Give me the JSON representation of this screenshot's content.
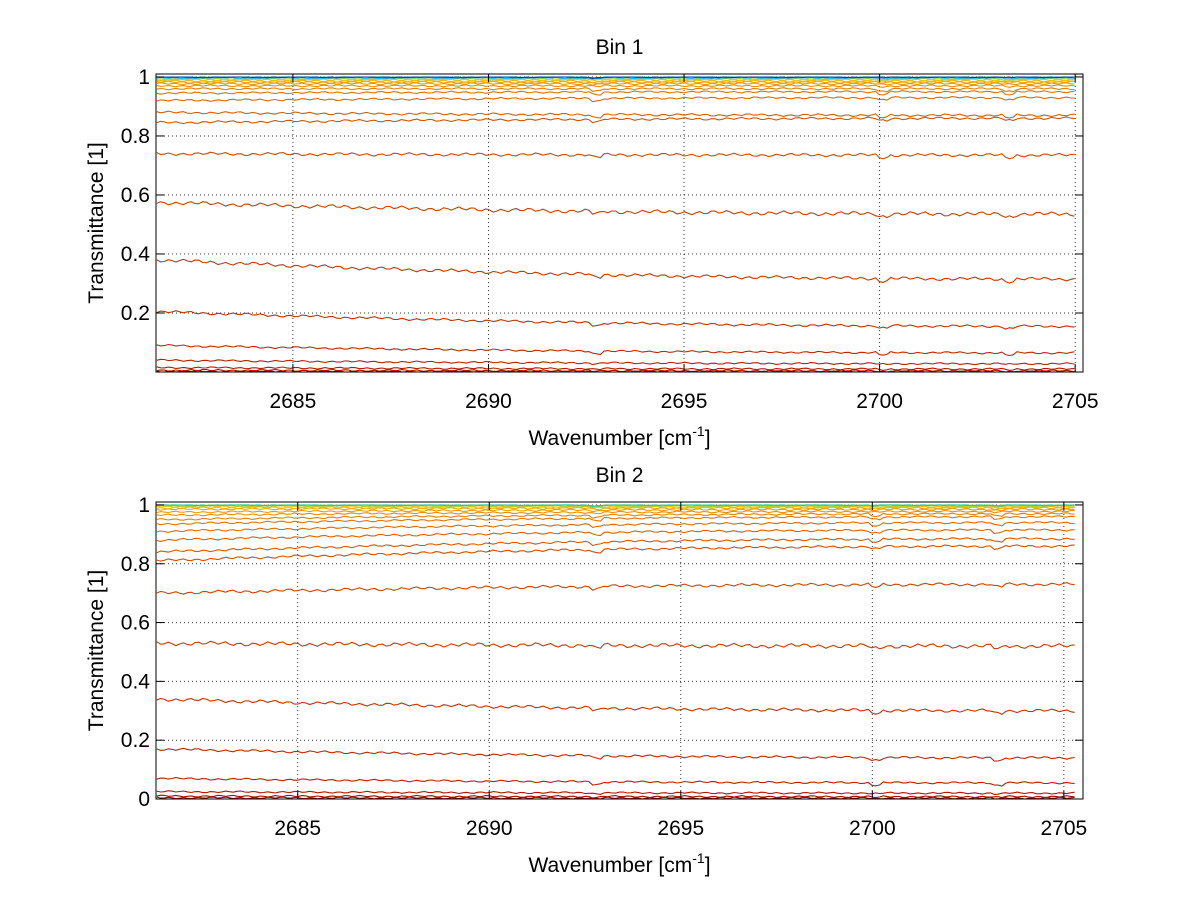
{
  "chart_data": [
    {
      "type": "line",
      "title": "Bin 1",
      "xlabel": "Wavenumber [cm",
      "xlabel_sup": "-1",
      "xlabel_end": "]",
      "ylabel": "Transmittance [1]",
      "xlim": [
        2681.5,
        2705.2
      ],
      "ylim": [
        0,
        1.01
      ],
      "x_ticks": [
        "2685",
        "2690",
        "2695",
        "2700",
        "2705"
      ],
      "y_ticks": [
        "0.2",
        "0.4",
        "0.6",
        "0.8",
        "1"
      ],
      "grid": true,
      "series_levels_start": [
        1.0,
        0.999,
        0.997,
        0.995,
        0.993,
        0.99,
        0.986,
        0.982,
        0.977,
        0.97,
        0.96,
        0.945,
        0.92,
        0.88,
        0.845,
        0.74,
        0.575,
        0.38,
        0.205,
        0.09,
        0.04,
        0.015,
        0.006,
        0.002
      ],
      "series_levels_end": [
        1.0,
        0.999,
        0.997,
        0.995,
        0.993,
        0.99,
        0.986,
        0.982,
        0.977,
        0.97,
        0.96,
        0.95,
        0.93,
        0.87,
        0.86,
        0.735,
        0.535,
        0.315,
        0.155,
        0.065,
        0.028,
        0.01,
        0.004,
        0.001
      ],
      "series_colors": [
        "#003f9f",
        "#1a7fd0",
        "#38b8d8",
        "#7dd0a0",
        "#b8d060",
        "#f0c000",
        "#f5b000",
        "#f0a000",
        "#ec9a00",
        "#e89000",
        "#e08000",
        "#dc7500",
        "#d86a00",
        "#d46000",
        "#d05500",
        "#cc4a00",
        "#c84200",
        "#c43a00",
        "#c03200",
        "#bc2a00",
        "#b82200",
        "#b41a00",
        "#b01000",
        "#a80000"
      ]
    },
    {
      "type": "line",
      "title": "Bin 2",
      "xlabel": "Wavenumber [cm",
      "xlabel_sup": "-1",
      "xlabel_end": "]",
      "ylabel": "Transmittance [1]",
      "xlim": [
        2681.3,
        2705.5
      ],
      "ylim": [
        0,
        1.01
      ],
      "x_ticks": [
        "2685",
        "2690",
        "2695",
        "2700",
        "2705"
      ],
      "y_ticks": [
        "0",
        "0.2",
        "0.4",
        "0.6",
        "0.8",
        "1"
      ],
      "grid": true,
      "series_levels_start": [
        1.0,
        0.999,
        0.997,
        0.995,
        0.99,
        0.985,
        0.975,
        0.965,
        0.95,
        0.935,
        0.91,
        0.88,
        0.84,
        0.81,
        0.7,
        0.53,
        0.34,
        0.17,
        0.07,
        0.025,
        0.01,
        0.004
      ],
      "series_levels_end": [
        1.0,
        0.999,
        0.997,
        0.995,
        0.993,
        0.99,
        0.985,
        0.978,
        0.97,
        0.96,
        0.94,
        0.915,
        0.885,
        0.86,
        0.73,
        0.52,
        0.3,
        0.14,
        0.055,
        0.02,
        0.008,
        0.003
      ],
      "series_colors": [
        "#20c8a0",
        "#70d060",
        "#b0d040",
        "#f0c800",
        "#f5b800",
        "#f0a800",
        "#ec9c00",
        "#e89000",
        "#e48400",
        "#e07800",
        "#dc6e00",
        "#d86400",
        "#d45a00",
        "#d05000",
        "#cc4600",
        "#c83c00",
        "#c43200",
        "#c02800",
        "#bc1e00",
        "#b41400",
        "#ac0a00",
        "#a40000"
      ]
    }
  ]
}
